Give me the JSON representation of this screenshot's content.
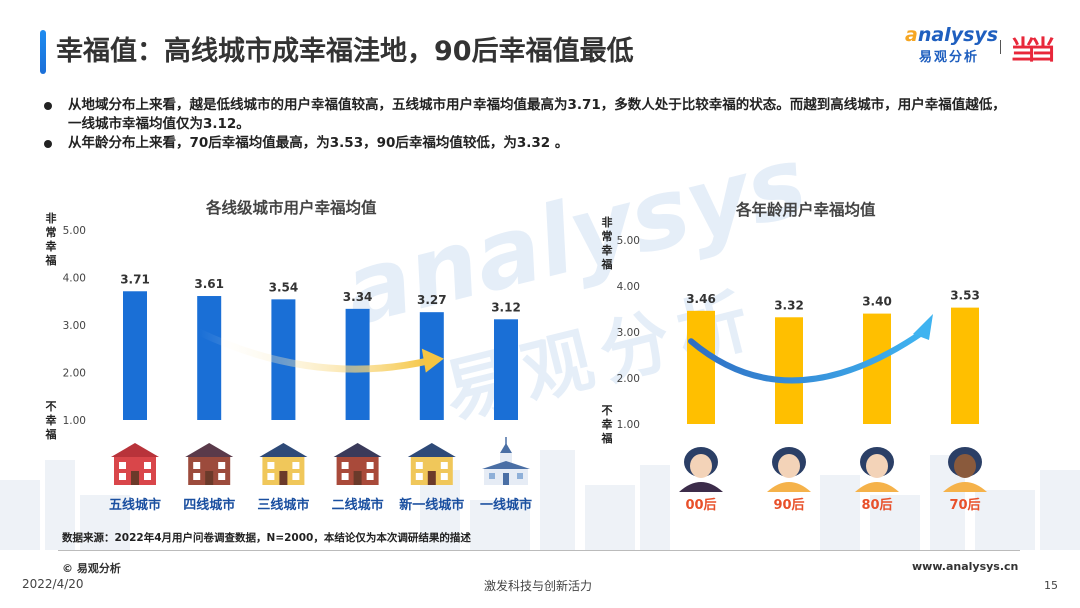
{
  "header": {
    "title": "幸福值：高线城市成幸福洼地，90后幸福值最低",
    "logo_en_a": "a",
    "logo_en_rest": "nalysys",
    "logo_cn": "易观分析",
    "partner_logo": "当当"
  },
  "bullets": [
    "从地域分布上来看，越是低线城市的用户幸福值较高，五线城市用户幸福均值最高为3.71，多数人处于比较幸福的状态。而越到高线城市，用户幸福值越低，一线城市幸福均值仅为3.12。",
    "从年龄分布上来看，70后幸福均值最高，为3.53，90后幸福均值较低，为3.32 。"
  ],
  "watermark": {
    "en": "analysys",
    "cn": "易观分析"
  },
  "charts": {
    "city": {
      "title": "各线级城市用户幸福均值",
      "label_top": "非常幸福",
      "label_bottom": "不幸福"
    },
    "age": {
      "title": "各年龄用户幸福均值",
      "label_top": "非常幸福",
      "label_bottom": "不幸福"
    }
  },
  "chart_data": [
    {
      "type": "bar",
      "title": "各线级城市用户幸福均值",
      "categories": [
        "五线城市",
        "四线城市",
        "三线城市",
        "二线城市",
        "新一线城市",
        "一线城市"
      ],
      "values": [
        3.71,
        3.61,
        3.54,
        3.34,
        3.27,
        3.12
      ],
      "ylim": [
        1.0,
        5.0
      ],
      "yticks": [
        "1.00",
        "2.00",
        "3.00",
        "4.00",
        "5.00"
      ],
      "value_labels": [
        "3.71",
        "3.61",
        "3.54",
        "3.34",
        "3.27",
        "3.12"
      ],
      "color": "#1a6fd6",
      "category_icons": [
        "house-icon",
        "house-icon",
        "house-icon",
        "house-icon",
        "house-icon",
        "church-icon"
      ],
      "trend": "down"
    },
    {
      "type": "bar",
      "title": "各年龄用户幸福均值",
      "categories": [
        "00后",
        "90后",
        "80后",
        "70后"
      ],
      "values": [
        3.46,
        3.32,
        3.4,
        3.53
      ],
      "ylim": [
        1.0,
        5.0
      ],
      "yticks": [
        "1.00",
        "2.00",
        "3.00",
        "4.00",
        "5.00"
      ],
      "value_labels": [
        "3.46",
        "3.32",
        "3.40",
        "3.53"
      ],
      "color": "#ffbf00",
      "label_color": "#e8502a",
      "category_icons": [
        "person-icon",
        "person-icon",
        "person-icon",
        "person-icon"
      ],
      "trend": "up"
    }
  ],
  "footer": {
    "source": "数据来源：2022年4月用户问卷调查数据，N=2000，本结论仅为本次调研结果的描述",
    "copyright": "© 易观分析",
    "website": "www.analysys.cn",
    "date": "2022/4/20",
    "slogan": "激发科技与创新活力",
    "page": "15"
  }
}
